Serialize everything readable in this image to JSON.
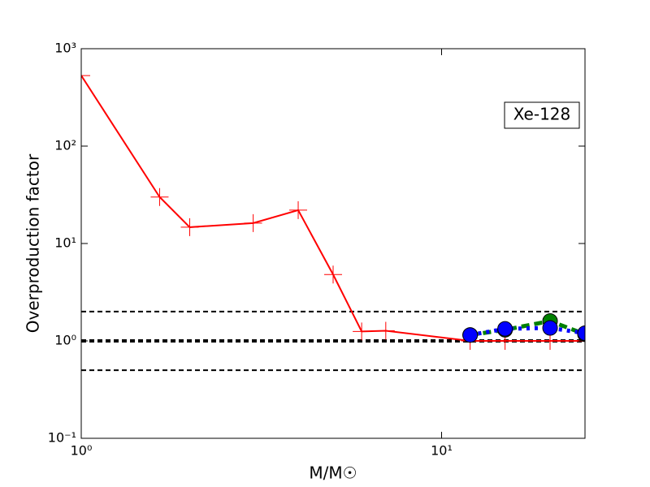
{
  "chart_data": {
    "type": "line",
    "xlabel": "M/M☉",
    "ylabel": "Overproduction factor",
    "annotation": "Xe-128",
    "xscale": "log",
    "yscale": "log",
    "xlim": [
      1,
      25
    ],
    "ylim": [
      0.1,
      1000
    ],
    "xticks": [
      {
        "value": 1,
        "label": "10⁰"
      },
      {
        "value": 10,
        "label": "10¹"
      }
    ],
    "yticks": [
      {
        "value": 0.1,
        "label": "10⁻¹"
      },
      {
        "value": 1,
        "label": "10⁰"
      },
      {
        "value": 10,
        "label": "10¹"
      },
      {
        "value": 100,
        "label": "10²"
      },
      {
        "value": 1000,
        "label": "10³"
      }
    ],
    "reference_lines": [
      0.5,
      1,
      2
    ],
    "series": [
      {
        "color": "#ff0000",
        "style": "solid",
        "marker": "plus",
        "x": [
          1,
          1.65,
          2,
          3,
          4,
          5,
          6,
          7,
          12,
          15,
          20,
          25
        ],
        "values": [
          530,
          30,
          14.7,
          16.2,
          22,
          4.8,
          1.25,
          1.27,
          1.0,
          1.0,
          1.0,
          1.0
        ]
      },
      {
        "color": "#008000",
        "style": "dashed",
        "marker": "circle",
        "x": [
          12,
          15,
          20,
          25
        ],
        "values": [
          1.15,
          1.3,
          1.6,
          1.17
        ]
      },
      {
        "color": "#0000ff",
        "style": "dotted",
        "marker": "circle",
        "x": [
          12,
          15,
          20,
          25
        ],
        "values": [
          1.15,
          1.33,
          1.36,
          1.2
        ]
      }
    ]
  }
}
